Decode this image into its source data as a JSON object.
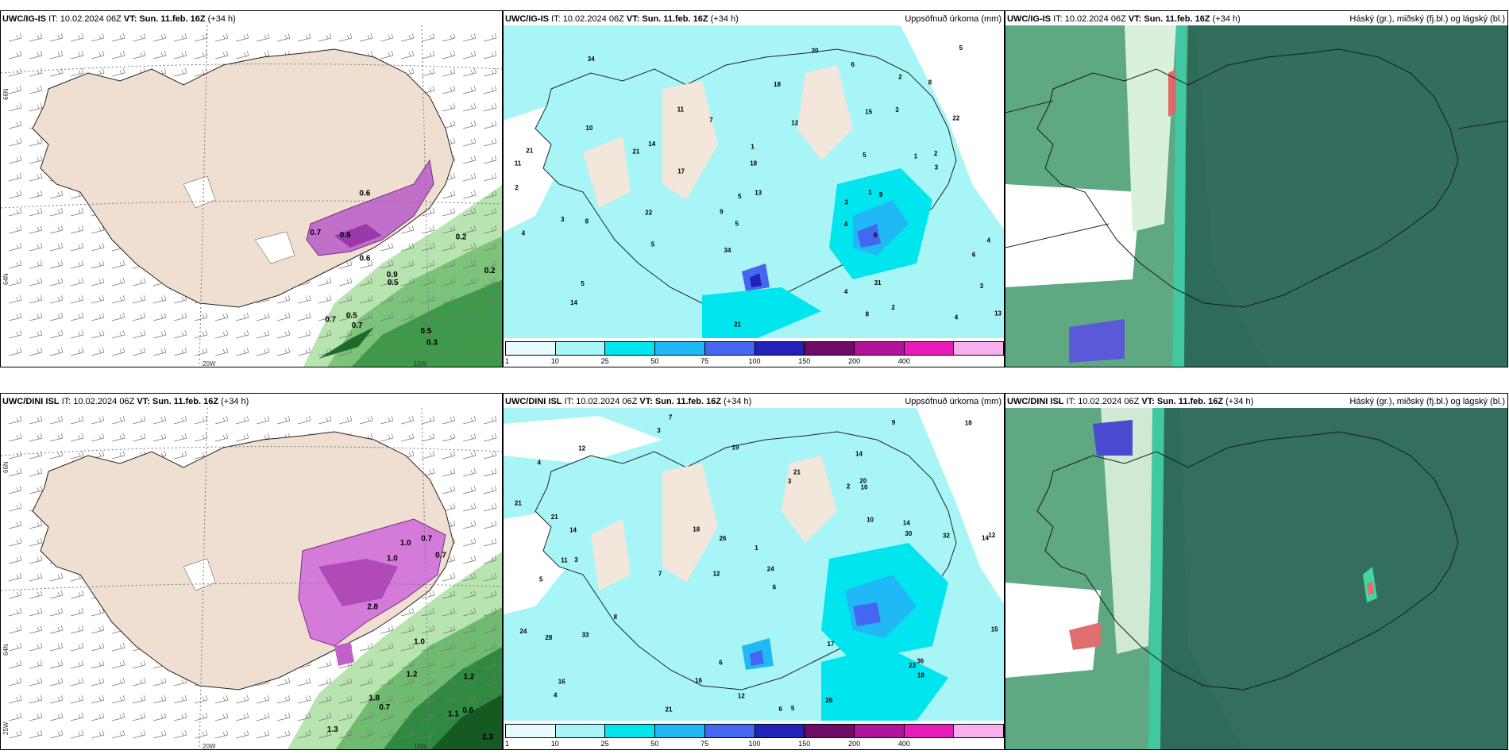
{
  "rows": [
    {
      "model": "UWC/IG-IS",
      "init": "IT: 10.02.2024 06Z",
      "valid_label": "VT:",
      "valid": "Sun. 11.feb. 16Z",
      "lead": "(+34 h)"
    },
    {
      "model": "UWC/DINI ISL",
      "init": "IT: 10.02.2024 06Z",
      "valid_label": "VT:",
      "valid": "Sun. 11.feb. 16Z",
      "lead": "(+34 h)"
    }
  ],
  "precip_title": "Uppsöfnuð úrkoma (mm)",
  "cloud_title": "Háský (gr.), miðský (fj.bl.) og lágský (bl.)",
  "colorbar": {
    "labels": [
      "1",
      "10",
      "25",
      "50",
      "75",
      "100",
      "150",
      "200",
      "400"
    ],
    "colors": [
      "#e8fbfc",
      "#a8f5f7",
      "#00e5ee",
      "#20b8f5",
      "#4466f0",
      "#2222b8",
      "#6e0a68",
      "#b0149a",
      "#e81ab8",
      "#f6b0f0"
    ]
  },
  "axes": {
    "lat_66": "66N",
    "lat_64": "64N",
    "lon_25": "25W",
    "lon_20": "20W",
    "lon_15": "15W"
  },
  "panel1_values_top": [
    "0.3",
    "0.6",
    "0.5",
    "0.6",
    "0.2",
    "0.5",
    "0.2",
    "0.6",
    "0.5",
    "0.7",
    "0.7",
    "0.7",
    "0.9"
  ],
  "panel1_values_bottom": [
    "1.3",
    "1.2",
    "1.0",
    "1.2",
    "1.0",
    "0.7",
    "0.6",
    "0.7",
    "1.1",
    "1.8",
    "2.3",
    "2.8",
    "0.7",
    "1.0"
  ],
  "precip_values_top": [
    "4",
    "4",
    "1",
    "6",
    "4",
    "3",
    "2",
    "1",
    "3",
    "2",
    "1",
    "3",
    "4",
    "6",
    "5",
    "4",
    "8",
    "3",
    "2",
    "7",
    "5",
    "2",
    "5",
    "6",
    "3",
    "5",
    "10",
    "15",
    "13",
    "8",
    "22",
    "20",
    "21",
    "31",
    "17",
    "14",
    "12",
    "13",
    "9",
    "8",
    "9",
    "22",
    "18",
    "21",
    "11",
    "11",
    "5",
    "14",
    "5",
    "34",
    "34",
    "21",
    "18"
  ],
  "precip_values_bottom": [
    "7",
    "14",
    "14",
    "12",
    "6",
    "3",
    "4",
    "2",
    "5",
    "3",
    "1",
    "4",
    "3",
    "7",
    "6",
    "5",
    "6",
    "9",
    "10",
    "8",
    "14",
    "11",
    "12",
    "32",
    "24",
    "21",
    "26",
    "30",
    "36",
    "28",
    "23",
    "21",
    "33",
    "18",
    "17",
    "15",
    "14",
    "16",
    "18",
    "19",
    "16",
    "21",
    "26",
    "12",
    "12",
    "10",
    "18",
    "20",
    "21",
    "24"
  ]
}
